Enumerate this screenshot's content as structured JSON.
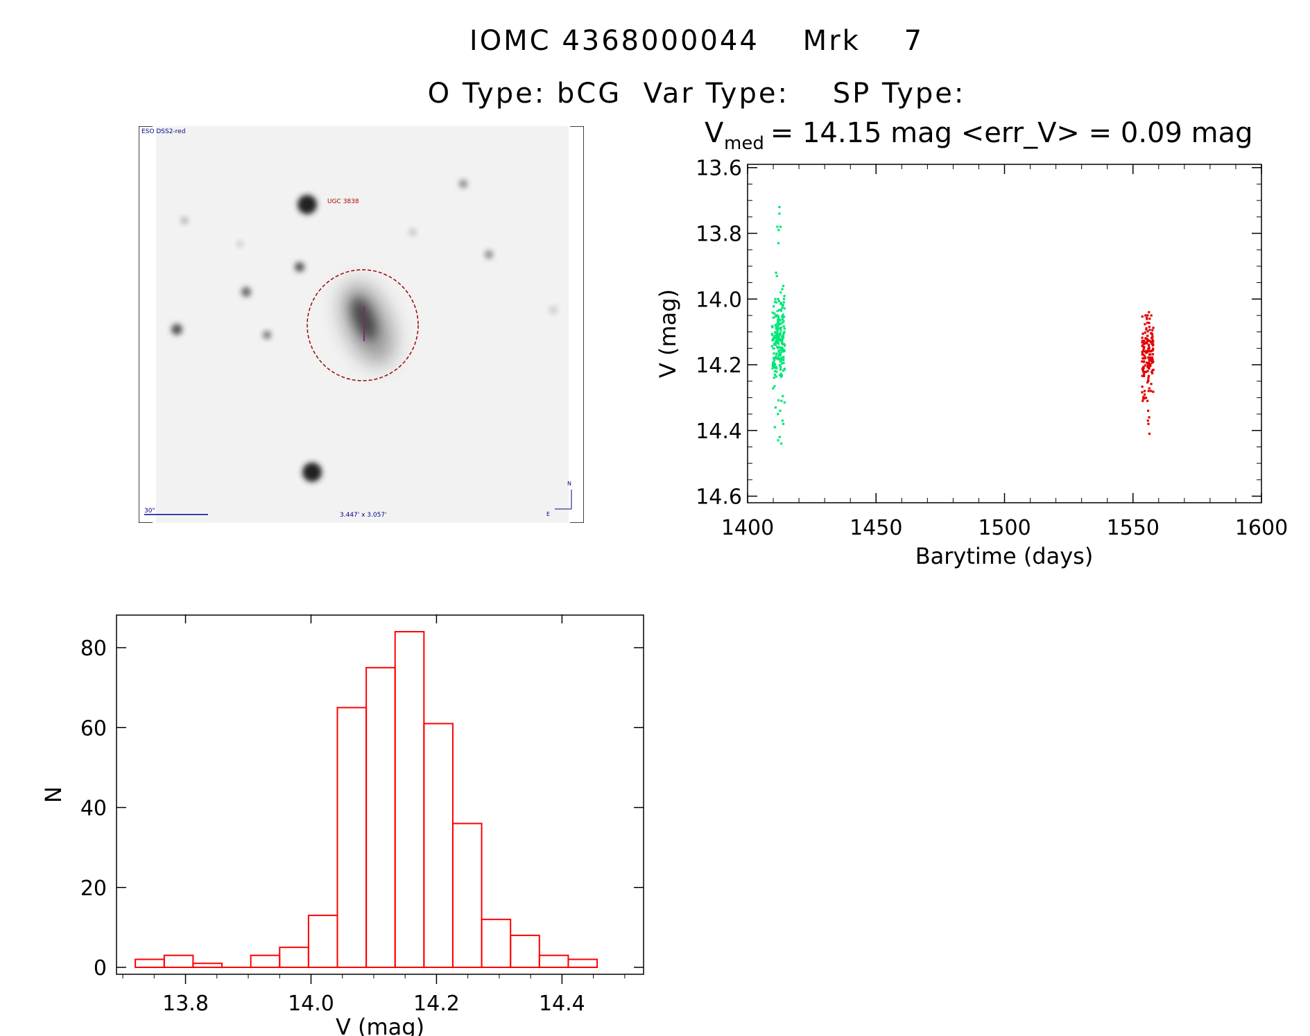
{
  "header": {
    "line1": "IOMC 4368000044    Mrk    7",
    "line2": "O Type: bCG  Var Type:    SP Type:"
  },
  "image_panel": {
    "survey_label": "ESO DSS2-red",
    "object_label": "UGC 3838",
    "scale_label": "30\"",
    "size_label": "3.447' x 3.057'",
    "compass_n": "N",
    "compass_e": "E"
  },
  "colors": {
    "first_season": "#00e676",
    "second_season": "#e00000",
    "histogram": "#ff0000",
    "ring": "#a00000"
  },
  "chart_data": [
    {
      "type": "scatter",
      "title_main": "V",
      "title_sub": "med",
      "title_rest": " = 14.15 mag <err_V> = 0.09 mag",
      "xlabel": "Barytime (days)",
      "ylabel": "V (mag)",
      "xlim": [
        1400,
        1600
      ],
      "ylim": [
        14.62,
        13.59
      ],
      "y_inverted": true,
      "xticks": [
        1400,
        1450,
        1500,
        1550,
        1600
      ],
      "yticks": [
        13.6,
        13.8,
        14.0,
        14.2,
        14.4,
        14.6
      ],
      "ytick_labels": [
        "13.6",
        "13.8",
        "14.0",
        "14.2",
        "14.4",
        "14.6"
      ],
      "series": [
        {
          "color": "#00e676",
          "x_range": [
            1409.5,
            1414.5
          ],
          "points": [
            [
              1412.4,
              13.72
            ],
            [
              1412.4,
              13.74
            ],
            [
              1411.6,
              13.78
            ],
            [
              1412.1,
              13.79
            ],
            [
              1412.8,
              13.78
            ],
            [
              1412.0,
              13.83
            ],
            [
              1411.1,
              13.92
            ],
            [
              1411.4,
              13.93
            ],
            [
              1413.5,
              13.97
            ],
            [
              1412.9,
              13.98
            ],
            [
              1410.8,
              14.0
            ],
            [
              1411.9,
              14.0
            ],
            [
              1414.2,
              14.0
            ],
            [
              1410.9,
              14.33
            ],
            [
              1413.2,
              14.31
            ],
            [
              1412.7,
              14.34
            ],
            [
              1411.8,
              14.35
            ],
            [
              1413.6,
              14.37
            ],
            [
              1410.6,
              14.39
            ],
            [
              1413.9,
              14.38
            ],
            [
              1412.5,
              14.42
            ],
            [
              1411.9,
              14.43
            ],
            [
              1413.1,
              14.44
            ]
          ],
          "core": {
            "n": 200,
            "center": 14.13,
            "sd": 0.07,
            "min": 13.95,
            "max": 14.32
          }
        },
        {
          "color": "#e00000",
          "x_range": [
            1553.5,
            1558.0
          ],
          "points": [
            [
              1556.2,
              14.04
            ],
            [
              1555.7,
              14.05
            ],
            [
              1556.5,
              14.06
            ],
            [
              1555.9,
              14.34
            ],
            [
              1556.3,
              14.36
            ],
            [
              1556.0,
              14.38
            ],
            [
              1555.8,
              14.37
            ],
            [
              1556.4,
              14.41
            ]
          ],
          "core": {
            "n": 150,
            "center": 14.18,
            "sd": 0.06,
            "min": 14.05,
            "max": 14.31
          }
        }
      ]
    },
    {
      "type": "bar",
      "histogram": true,
      "xlabel": "V (mag)",
      "ylabel": "N",
      "xlim": [
        13.69,
        14.53
      ],
      "ylim": [
        0,
        88
      ],
      "xticks": [
        13.8,
        14.0,
        14.2,
        14.4
      ],
      "xtick_labels": [
        "13.8",
        "14.0",
        "14.2",
        "14.4"
      ],
      "yticks": [
        0,
        20,
        40,
        60,
        80
      ],
      "bin_width": 0.046,
      "bin_left_edges": [
        13.72,
        13.766,
        13.812,
        13.858,
        13.904,
        13.95,
        13.996,
        14.042,
        14.088,
        14.134,
        14.18,
        14.226,
        14.272,
        14.318,
        14.364,
        14.41
      ],
      "counts": [
        2,
        3,
        1,
        0,
        3,
        5,
        13,
        65,
        75,
        84,
        61,
        36,
        12,
        8,
        3,
        2
      ]
    }
  ]
}
